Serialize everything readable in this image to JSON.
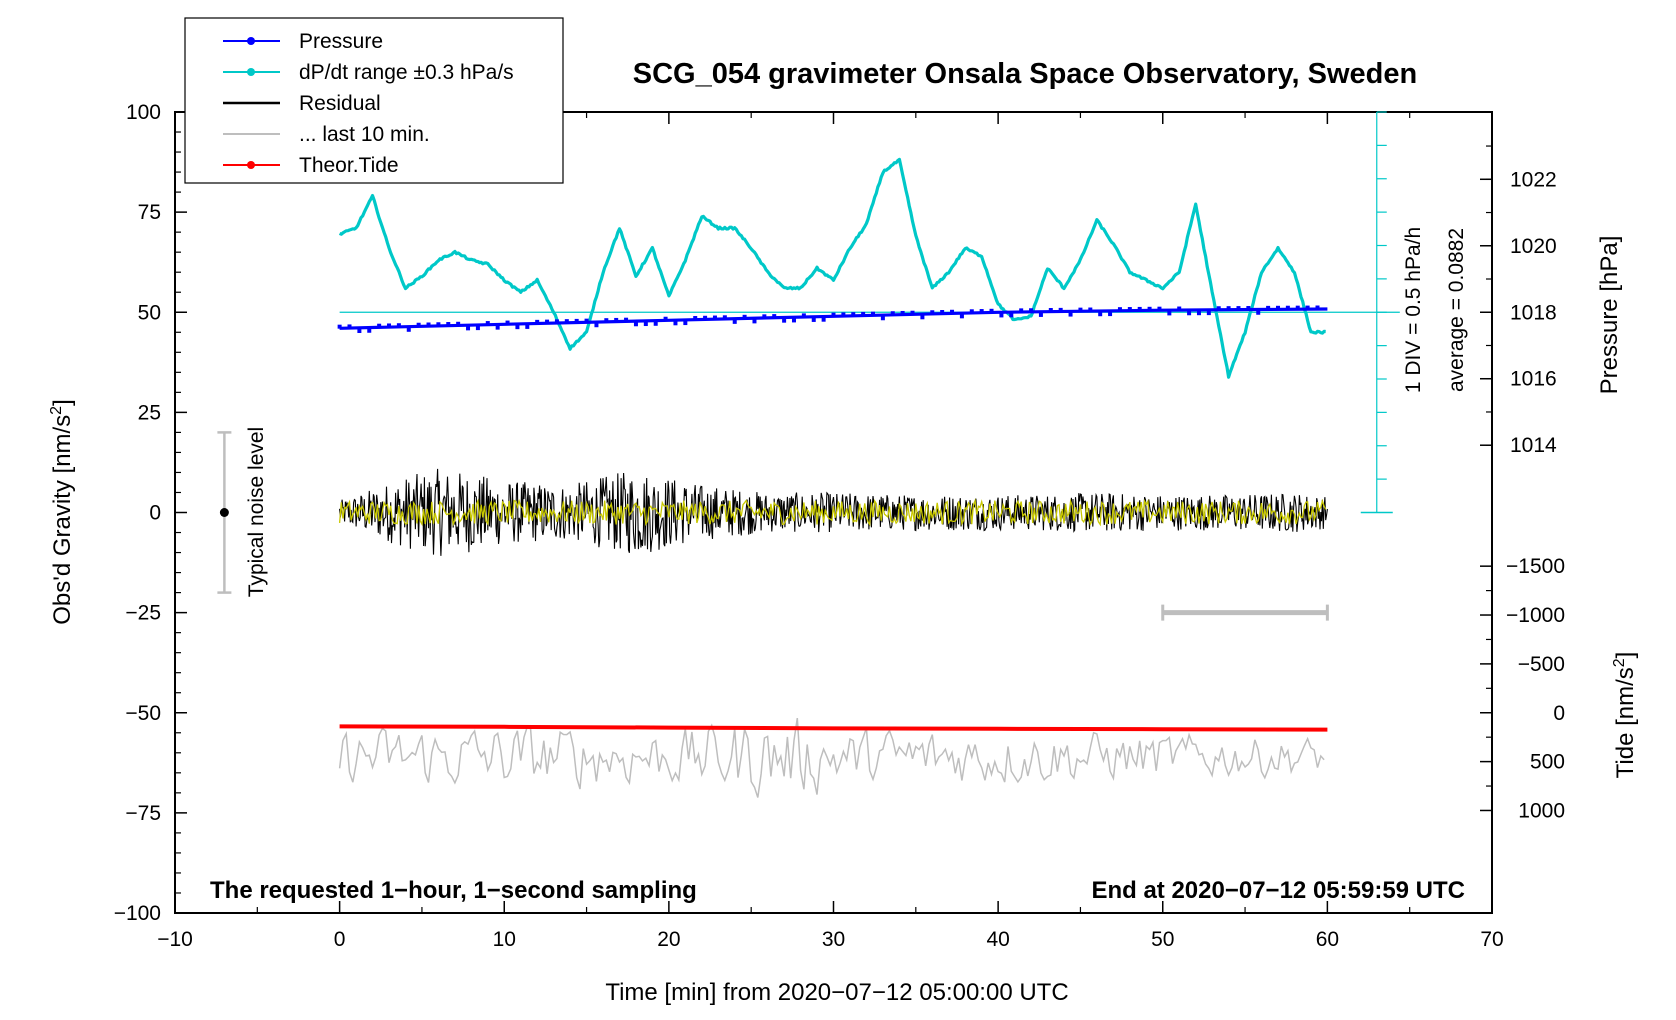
{
  "chart_data": {
    "type": "line",
    "title": "SCG_054 gravimeter Onsala Space Observatory, Sweden",
    "xlabel": "Time [min] from 2020−07−12 05:00:00 UTC",
    "xlim": [
      -10,
      70
    ],
    "xticks": [
      -10,
      0,
      10,
      20,
      30,
      40,
      50,
      60,
      70
    ],
    "xtick_labels": [
      "−10",
      "0",
      "10",
      "20",
      "30",
      "40",
      "50",
      "60",
      "70"
    ],
    "left_axis": {
      "label": "Obs'd Gravity [nm/s²]",
      "label_main": "Obs'd Gravity [nm/s",
      "label_sup": "2",
      "label_end": "]",
      "lim": [
        -100,
        100
      ],
      "ticks": [
        -100,
        -75,
        -50,
        -25,
        0,
        25,
        50,
        75,
        100
      ],
      "tick_labels": [
        "−100",
        "−75",
        "−50",
        "−25",
        "0",
        "25",
        "50",
        "75",
        "100"
      ]
    },
    "right_pressure_axis": {
      "label": "Pressure [hPa]",
      "ticks": [
        1014,
        1016,
        1018,
        1020,
        1022
      ],
      "tick_labels": [
        "1014",
        "1016",
        "1018",
        "1020",
        "1022"
      ]
    },
    "right_tide_axis": {
      "label": "Tide [nm/s²]",
      "label_main": "Tide [nm/s",
      "label_sup": "2",
      "label_end": "]",
      "ticks": [
        -1500,
        -1000,
        -500,
        0,
        500,
        1000
      ],
      "tick_labels": [
        "−1500",
        "−1000",
        "−500",
        "0",
        "500",
        "1000"
      ]
    },
    "legend": {
      "placement": "top-left",
      "entries": [
        {
          "label": "Pressure",
          "color": "#0000ff",
          "marker": true
        },
        {
          "label": "dP/dt range ±0.3 hPa/s",
          "color": "#00c8c8",
          "marker": true
        },
        {
          "label": "Residual",
          "color": "#000000",
          "marker": false
        },
        {
          "label": "... last 10 min.",
          "color": "#bebebe",
          "marker": false
        },
        {
          "label": "Theor.Tide",
          "color": "#ff0000",
          "marker": true
        }
      ]
    },
    "noise_bar": {
      "label": "Typical noise level",
      "x": -7,
      "low": -20,
      "high": 20,
      "center": 0
    },
    "dpdt_scale": {
      "label_div": "1 DIV = 0.5 hPa/h",
      "label_avg": "average = 0.0882",
      "x": 63,
      "low": 0,
      "high": 100,
      "divisions": 12
    },
    "last10_bar": {
      "x_start": 50,
      "x_end": 60,
      "y": -25
    },
    "footer_left": "The requested 1−hour, 1−second sampling",
    "footer_right": "End at 2020−07−12 05:59:59 UTC",
    "series": [
      {
        "name": "Pressure",
        "color": "#0000ff",
        "x": [
          0,
          10,
          20,
          30,
          40,
          50,
          60
        ],
        "y": [
          46,
          47,
          48,
          49,
          50,
          50.5,
          50.8
        ]
      },
      {
        "name": "dP/dt range ±0.3 hPa/s",
        "color": "#00c8c8",
        "x": [
          0,
          1,
          2,
          3,
          4,
          5,
          6,
          7,
          8,
          9,
          10,
          11,
          12,
          13,
          14,
          15,
          16,
          17,
          18,
          19,
          20,
          21,
          22,
          23,
          24,
          25,
          26,
          27,
          28,
          29,
          30,
          31,
          32,
          33,
          34,
          35,
          36,
          37,
          38,
          39,
          40,
          41,
          42,
          43,
          44,
          45,
          46,
          47,
          48,
          49,
          50,
          51,
          52,
          53,
          54,
          55,
          56,
          57,
          58,
          59,
          60
        ],
        "y": [
          69.5,
          71,
          79,
          66,
          56,
          59,
          63,
          65,
          63,
          62,
          58,
          55,
          58,
          50,
          41,
          45,
          60,
          71,
          59,
          66,
          54,
          63,
          74,
          71,
          71,
          66,
          60,
          56,
          56,
          61,
          58,
          66,
          72,
          85,
          88,
          69,
          56,
          60,
          66,
          64,
          52,
          48,
          49,
          61,
          56,
          63,
          73,
          67,
          60,
          58,
          56,
          60,
          77,
          55,
          34,
          45,
          60,
          66,
          60,
          45,
          45
        ]
      },
      {
        "name": "Residual",
        "color": "#000000",
        "x": [
          0,
          4,
          6,
          8,
          10,
          14,
          18,
          22,
          26,
          30,
          34,
          38,
          42,
          46,
          50,
          54,
          58,
          60
        ],
        "y": [
          0,
          0,
          0,
          0,
          0,
          0,
          0,
          0,
          0,
          0,
          0,
          0,
          0,
          0,
          0,
          0,
          0,
          0
        ],
        "envelope": [
          3,
          9,
          11,
          10,
          8,
          7,
          11,
          7,
          5,
          5,
          4.5,
          4.5,
          4.5,
          5,
          4.5,
          4.5,
          5,
          4
        ]
      },
      {
        "name": "Filtered residual",
        "color": "#c8c800",
        "x": [
          0,
          60
        ],
        "y": [
          0,
          0
        ],
        "envelope": [
          3,
          3
        ]
      },
      {
        "name": "Theor.Tide",
        "color": "#ff0000",
        "x": [
          0,
          10,
          20,
          30,
          40,
          50,
          60
        ],
        "y": [
          -53.4,
          -53.5,
          -53.7,
          -53.9,
          -54,
          -54.1,
          -54.2
        ]
      },
      {
        "name": "... last 10 min.",
        "color": "#bebebe",
        "x": [
          0,
          10,
          20,
          26,
          29,
          30,
          40,
          50,
          60
        ],
        "y": [
          -61,
          -61,
          -61,
          -61,
          -61,
          -61,
          -61,
          -61,
          -61
        ],
        "envelope": [
          6,
          7,
          6,
          9,
          8,
          6,
          6,
          5,
          4
        ]
      }
    ]
  }
}
